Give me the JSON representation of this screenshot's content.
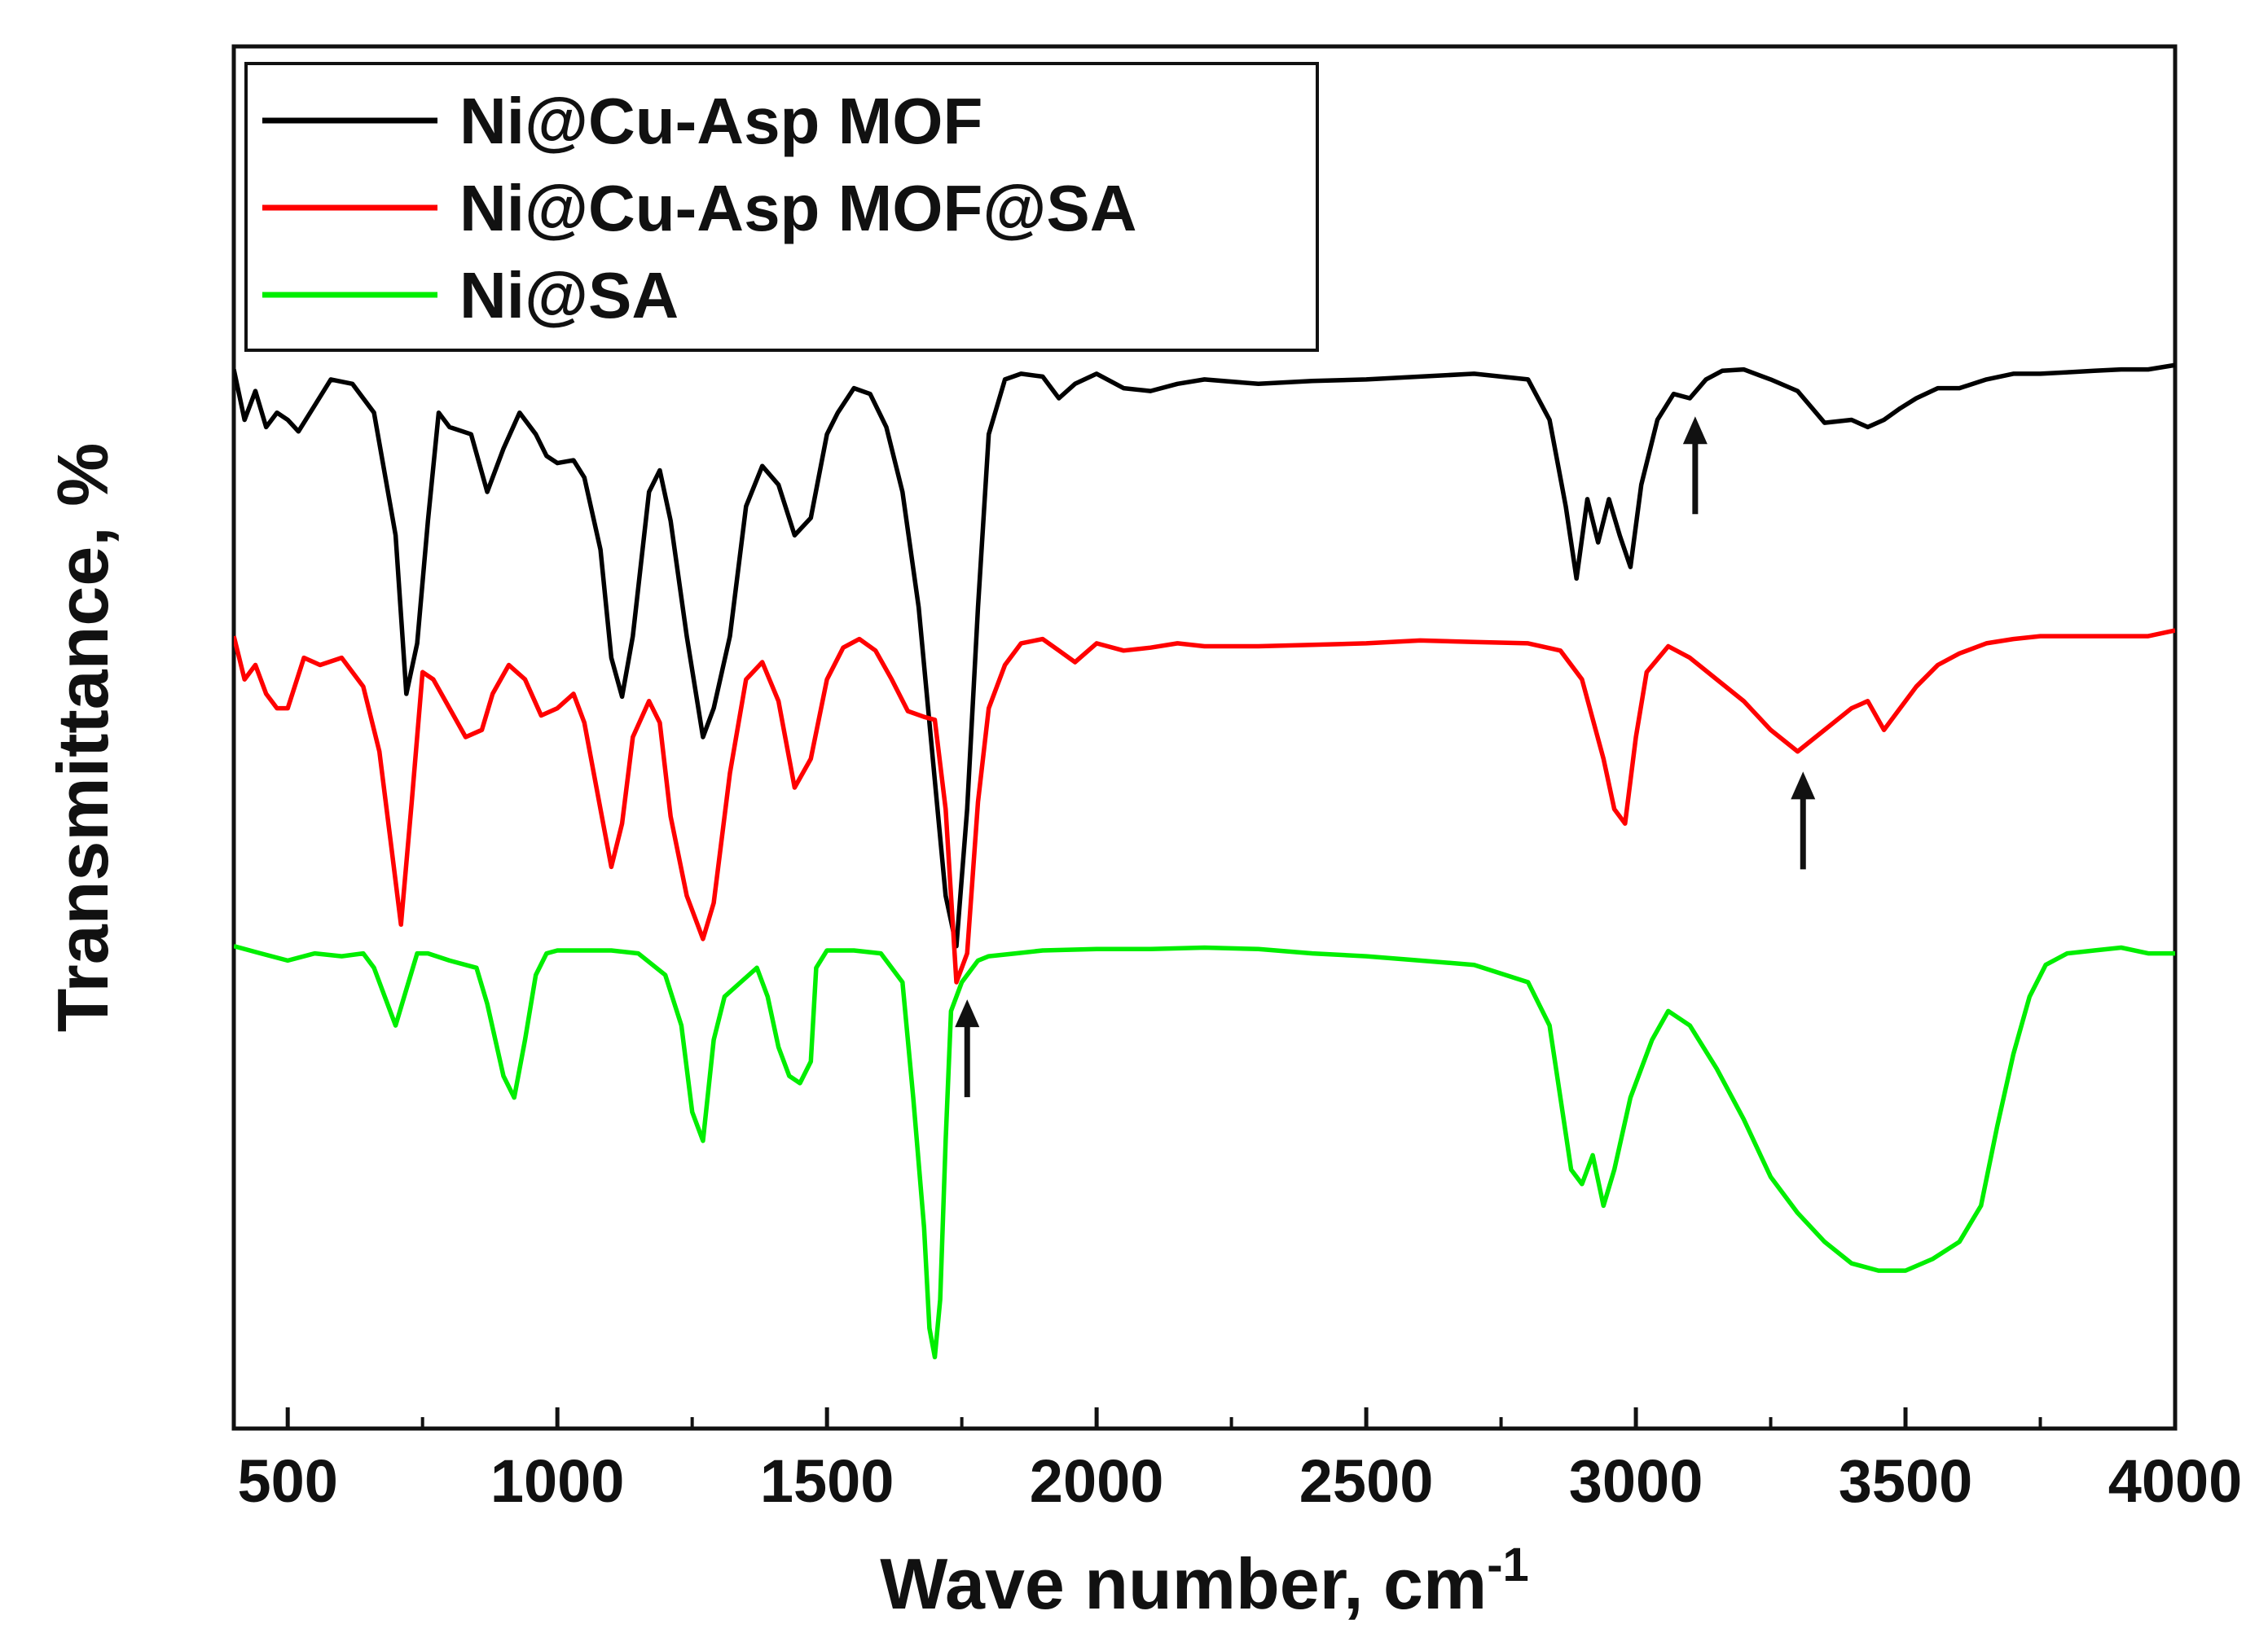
{
  "chart_data": {
    "type": "line",
    "xlabel": "Wave number, cm",
    "xlabel_superscript": "-1",
    "ylabel": "Transmittance, %",
    "xlim": [
      400,
      4000
    ],
    "xticks": [
      500,
      1000,
      1500,
      2000,
      2500,
      3000,
      3500,
      4000
    ],
    "y_ticks_shown": false,
    "grid": false,
    "legend_position": "top-left",
    "series": [
      {
        "name": "Ni@Cu-Asp MOF",
        "color": "#000000",
        "x": [
          400,
          420,
          440,
          460,
          480,
          500,
          520,
          550,
          580,
          620,
          660,
          700,
          720,
          740,
          760,
          780,
          800,
          840,
          870,
          900,
          930,
          960,
          980,
          1000,
          1030,
          1050,
          1080,
          1100,
          1120,
          1140,
          1170,
          1190,
          1210,
          1240,
          1270,
          1290,
          1320,
          1350,
          1380,
          1410,
          1440,
          1470,
          1500,
          1520,
          1550,
          1580,
          1610,
          1640,
          1670,
          1700,
          1720,
          1740,
          1760,
          1780,
          1800,
          1830,
          1860,
          1900,
          1930,
          1960,
          2000,
          2050,
          2100,
          2150,
          2200,
          2300,
          2400,
          2500,
          2600,
          2700,
          2800,
          2840,
          2870,
          2890,
          2910,
          2930,
          2950,
          2970,
          2990,
          3010,
          3040,
          3070,
          3100,
          3130,
          3160,
          3200,
          3250,
          3300,
          3350,
          3400,
          3430,
          3460,
          3490,
          3520,
          3560,
          3600,
          3650,
          3700,
          3750,
          3800,
          3850,
          3900,
          3950,
          4000
        ],
        "y": [
          255,
          290,
          270,
          295,
          285,
          290,
          298,
          280,
          262,
          265,
          285,
          370,
          480,
          445,
          360,
          285,
          295,
          300,
          340,
          310,
          285,
          300,
          315,
          320,
          318,
          330,
          380,
          455,
          482,
          440,
          340,
          325,
          360,
          440,
          510,
          490,
          440,
          350,
          322,
          335,
          370,
          358,
          300,
          285,
          268,
          272,
          295,
          340,
          420,
          540,
          620,
          655,
          560,
          420,
          300,
          262,
          258,
          260,
          275,
          265,
          258,
          268,
          270,
          265,
          262,
          265,
          263,
          262,
          260,
          258,
          262,
          290,
          350,
          400,
          345,
          375,
          345,
          370,
          392,
          335,
          290,
          272,
          275,
          262,
          256,
          255,
          262,
          270,
          292,
          290,
          295,
          290,
          282,
          275,
          268,
          268,
          262,
          258,
          258,
          257,
          256,
          255,
          255,
          252
        ],
        "markers": [
          {
            "x": 3110,
            "direction": "up"
          }
        ]
      },
      {
        "name": "Ni@Cu-Asp MOF@SA",
        "color": "#ff0000",
        "x": [
          400,
          420,
          440,
          460,
          480,
          500,
          530,
          560,
          600,
          640,
          670,
          690,
          710,
          730,
          750,
          770,
          800,
          830,
          860,
          880,
          910,
          940,
          970,
          1000,
          1030,
          1050,
          1080,
          1100,
          1120,
          1140,
          1170,
          1190,
          1210,
          1240,
          1270,
          1290,
          1320,
          1350,
          1380,
          1410,
          1440,
          1470,
          1500,
          1530,
          1560,
          1590,
          1620,
          1650,
          1680,
          1700,
          1720,
          1740,
          1760,
          1780,
          1800,
          1830,
          1860,
          1900,
          1930,
          1960,
          2000,
          2050,
          2100,
          2150,
          2200,
          2300,
          2400,
          2500,
          2600,
          2700,
          2800,
          2860,
          2900,
          2940,
          2960,
          2980,
          3000,
          3020,
          3060,
          3100,
          3150,
          3200,
          3250,
          3300,
          3350,
          3400,
          3430,
          3460,
          3490,
          3520,
          3560,
          3600,
          3650,
          3700,
          3750,
          3800,
          3850,
          3900,
          3950,
          4000
        ],
        "y": [
          440,
          470,
          460,
          480,
          490,
          490,
          455,
          460,
          455,
          475,
          520,
          580,
          640,
          555,
          465,
          470,
          490,
          510,
          505,
          480,
          460,
          470,
          495,
          490,
          480,
          500,
          560,
          600,
          570,
          510,
          485,
          500,
          565,
          620,
          650,
          625,
          535,
          470,
          458,
          485,
          545,
          525,
          470,
          448,
          442,
          450,
          470,
          492,
          496,
          498,
          560,
          680,
          660,
          555,
          490,
          460,
          445,
          442,
          450,
          458,
          445,
          450,
          448,
          445,
          447,
          447,
          446,
          445,
          443,
          444,
          445,
          450,
          470,
          525,
          560,
          570,
          510,
          465,
          447,
          455,
          470,
          485,
          505,
          520,
          505,
          490,
          485,
          505,
          490,
          475,
          460,
          452,
          445,
          442,
          440,
          440,
          440,
          440,
          440,
          436
        ],
        "markers": [
          {
            "x": 3310,
            "direction": "up"
          }
        ]
      },
      {
        "name": "Ni@SA",
        "color": "#00ee00",
        "x": [
          400,
          450,
          500,
          550,
          600,
          640,
          660,
          680,
          700,
          720,
          740,
          760,
          800,
          850,
          870,
          900,
          920,
          940,
          960,
          980,
          1000,
          1050,
          1100,
          1150,
          1200,
          1230,
          1250,
          1270,
          1290,
          1310,
          1340,
          1370,
          1390,
          1410,
          1430,
          1450,
          1470,
          1480,
          1500,
          1550,
          1600,
          1640,
          1660,
          1680,
          1690,
          1700,
          1710,
          1720,
          1730,
          1750,
          1780,
          1800,
          1850,
          1900,
          2000,
          2100,
          2200,
          2300,
          2400,
          2500,
          2600,
          2700,
          2800,
          2840,
          2860,
          2880,
          2900,
          2920,
          2940,
          2960,
          2990,
          3030,
          3060,
          3100,
          3150,
          3200,
          3250,
          3300,
          3350,
          3400,
          3450,
          3500,
          3550,
          3600,
          3640,
          3670,
          3700,
          3730,
          3760,
          3800,
          3850,
          3900,
          3950,
          4000
        ],
        "y": [
          655,
          660,
          665,
          660,
          662,
          660,
          670,
          690,
          710,
          685,
          660,
          660,
          665,
          670,
          695,
          745,
          760,
          720,
          675,
          660,
          658,
          658,
          658,
          660,
          675,
          710,
          770,
          790,
          720,
          690,
          680,
          670,
          690,
          725,
          745,
          750,
          735,
          670,
          658,
          658,
          660,
          680,
          760,
          850,
          920,
          940,
          900,
          790,
          700,
          680,
          665,
          662,
          660,
          658,
          657,
          657,
          656,
          657,
          660,
          662,
          665,
          668,
          680,
          710,
          760,
          810,
          820,
          800,
          835,
          810,
          760,
          720,
          700,
          710,
          740,
          775,
          815,
          840,
          860,
          875,
          880,
          880,
          872,
          860,
          835,
          780,
          730,
          690,
          668,
          660,
          658,
          656,
          660,
          660
        ],
        "markers": [
          {
            "x": 1760,
            "direction": "up"
          }
        ]
      }
    ]
  }
}
